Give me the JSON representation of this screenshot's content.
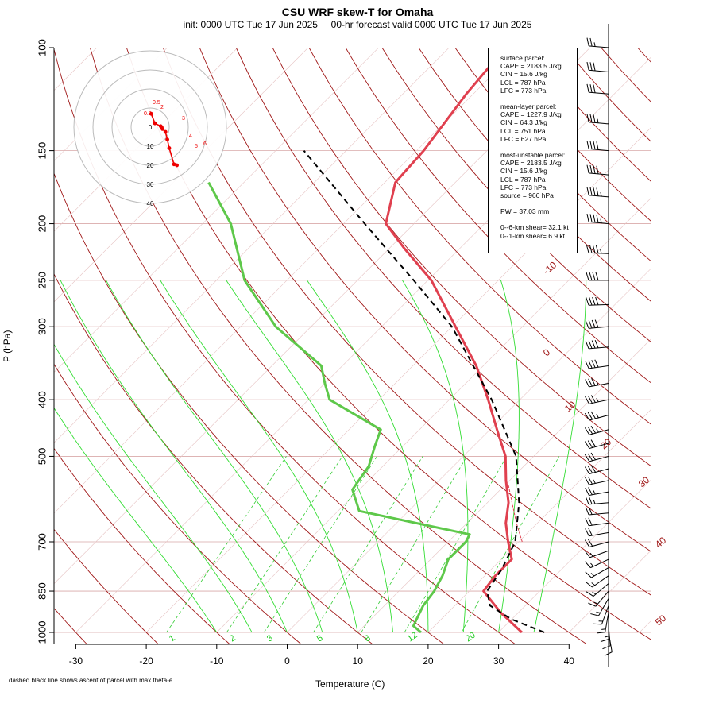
{
  "header": {
    "title": "CSU WRF skew-T for Omaha",
    "subtitle": "init: 0000 UTC Tue 17 Jun 2025     00-hr forecast valid 0000 UTC Tue 17 Jun 2025"
  },
  "footnote": "dashed black line shows ascent of parcel with max theta-e",
  "info": {
    "surface": [
      "surface parcel:",
      "CAPE = 2183.5 J/kg",
      "CIN = 15.6 J/kg",
      "LCL = 787 hPa",
      "LFC = 773 hPa"
    ],
    "mean_layer": [
      "mean-layer parcel:",
      "CAPE = 1227.9 J/kg",
      "CIN = 64.3 J/kg",
      "LCL = 751 hPa",
      "LFC = 627 hPa"
    ],
    "most_unstable": [
      "most-unstable parcel:",
      "CAPE = 2183.5 J/kg",
      "CIN = 15.6 J/kg",
      "LCL = 787 hPa",
      "LFC = 773 hPa",
      "source = 966 hPa"
    ],
    "pw": "PW =  37.03 mm",
    "shear": [
      "0--6-km shear= 32.1 kt",
      "0--1-km shear= 6.9 kt"
    ]
  },
  "chart_data": {
    "type": "line",
    "xlabel": "Temperature (C)",
    "ylabel": "P (hPa)",
    "xlim": [
      -33,
      44
    ],
    "ylim": [
      1000,
      100
    ],
    "log_y": true,
    "skew": true,
    "x_ticks": [
      -30,
      -20,
      -10,
      0,
      10,
      20,
      30,
      40
    ],
    "y_ticks": [
      100,
      150,
      200,
      250,
      300,
      400,
      500,
      700,
      850,
      1000
    ],
    "isotherm_labels": [
      "-10",
      "0",
      "10",
      "20",
      "30",
      "40",
      "50"
    ],
    "mixing_ratio_labels": [
      "1",
      "2",
      "3",
      "5",
      "8",
      "12",
      "20"
    ],
    "colors": {
      "temperature": "#e0404f",
      "dewpoint": "#5ec84a",
      "parcel": "#000000",
      "isotherm": "#a01818",
      "mixing_ratio": "#22cc22",
      "hodograph": "#ee0000"
    },
    "series": [
      {
        "name": "temperature",
        "points": [
          [
            1000,
            33.3
          ],
          [
            925,
            27.5
          ],
          [
            850,
            22
          ],
          [
            800,
            21.5
          ],
          [
            750,
            21.5
          ],
          [
            700,
            18.5
          ],
          [
            650,
            15.5
          ],
          [
            600,
            13
          ],
          [
            550,
            9.5
          ],
          [
            500,
            6
          ],
          [
            450,
            1
          ],
          [
            400,
            -4.5
          ],
          [
            350,
            -11
          ],
          [
            300,
            -19.5
          ],
          [
            250,
            -29.5
          ],
          [
            220,
            -38
          ],
          [
            200,
            -44
          ],
          [
            170,
            -48.5
          ],
          [
            150,
            -49
          ],
          [
            120,
            -51
          ],
          [
            100,
            -52
          ]
        ]
      },
      {
        "name": "dewpoint",
        "points": [
          [
            1000,
            19
          ],
          [
            975,
            17
          ],
          [
            950,
            16.5
          ],
          [
            900,
            15.5
          ],
          [
            850,
            15
          ],
          [
            800,
            14
          ],
          [
            750,
            12.5
          ],
          [
            700,
            12.5
          ],
          [
            680,
            12
          ],
          [
            620,
            -7
          ],
          [
            570,
            -11
          ],
          [
            520,
            -12
          ],
          [
            480,
            -14
          ],
          [
            450,
            -15.5
          ],
          [
            400,
            -27
          ],
          [
            375,
            -30
          ],
          [
            350,
            -33
          ],
          [
            300,
            -45
          ],
          [
            250,
            -56
          ],
          [
            200,
            -66
          ],
          [
            170,
            -75
          ]
        ]
      },
      {
        "name": "parcel",
        "points": [
          [
            1000,
            36.5
          ],
          [
            950,
            30
          ],
          [
            900,
            25
          ],
          [
            850,
            22.5
          ],
          [
            780,
            21.5
          ],
          [
            700,
            19.5
          ],
          [
            600,
            14.5
          ],
          [
            500,
            7.5
          ],
          [
            400,
            -4
          ],
          [
            300,
            -20
          ],
          [
            250,
            -32
          ],
          [
            200,
            -47
          ],
          [
            150,
            -66
          ]
        ]
      },
      {
        "name": "virtual",
        "points": [
          [
            700,
            20.5
          ],
          [
            650,
            17
          ],
          [
            600,
            13.5
          ],
          [
            560,
            10.5
          ]
        ]
      }
    ],
    "hodograph": {
      "ring_labels": [
        "0",
        "10",
        "20",
        "30",
        "40"
      ],
      "point_labels": [
        "0.5",
        "0.0",
        "2",
        "3",
        "4",
        "5",
        "6"
      ],
      "points": [
        [
          0.5,
          0.5
        ],
        [
          2.5,
          5.5
        ],
        [
          5.5,
          7
        ],
        [
          6,
          7.5
        ],
        [
          6.5,
          8.5
        ],
        [
          8,
          10
        ],
        [
          9,
          14
        ],
        [
          10,
          18.5
        ],
        [
          12.5,
          27
        ],
        [
          14,
          27.5
        ]
      ]
    },
    "wind_barbs": [
      {
        "p": 1000,
        "dir": 170,
        "spd": 10
      },
      {
        "p": 975,
        "dir": 175,
        "spd": 10
      },
      {
        "p": 950,
        "dir": 180,
        "spd": 15
      },
      {
        "p": 925,
        "dir": 190,
        "spd": 15
      },
      {
        "p": 900,
        "dir": 200,
        "spd": 15
      },
      {
        "p": 875,
        "dir": 210,
        "spd": 15
      },
      {
        "p": 850,
        "dir": 220,
        "spd": 15
      },
      {
        "p": 825,
        "dir": 230,
        "spd": 15
      },
      {
        "p": 800,
        "dir": 235,
        "spd": 15
      },
      {
        "p": 775,
        "dir": 240,
        "spd": 15
      },
      {
        "p": 750,
        "dir": 245,
        "spd": 15
      },
      {
        "p": 725,
        "dir": 250,
        "spd": 15
      },
      {
        "p": 700,
        "dir": 255,
        "spd": 20
      },
      {
        "p": 675,
        "dir": 260,
        "spd": 20
      },
      {
        "p": 650,
        "dir": 262,
        "spd": 20
      },
      {
        "p": 625,
        "dir": 265,
        "spd": 20
      },
      {
        "p": 600,
        "dir": 265,
        "spd": 25
      },
      {
        "p": 575,
        "dir": 260,
        "spd": 25
      },
      {
        "p": 550,
        "dir": 258,
        "spd": 25
      },
      {
        "p": 525,
        "dir": 255,
        "spd": 30
      },
      {
        "p": 500,
        "dir": 255,
        "spd": 30
      },
      {
        "p": 475,
        "dir": 255,
        "spd": 30
      },
      {
        "p": 450,
        "dir": 255,
        "spd": 35
      },
      {
        "p": 425,
        "dir": 255,
        "spd": 35
      },
      {
        "p": 400,
        "dir": 258,
        "spd": 35
      },
      {
        "p": 375,
        "dir": 260,
        "spd": 35
      },
      {
        "p": 350,
        "dir": 262,
        "spd": 40
      },
      {
        "p": 325,
        "dir": 265,
        "spd": 40
      },
      {
        "p": 300,
        "dir": 265,
        "spd": 40
      },
      {
        "p": 275,
        "dir": 268,
        "spd": 40
      },
      {
        "p": 250,
        "dir": 270,
        "spd": 40
      },
      {
        "p": 225,
        "dir": 272,
        "spd": 45
      },
      {
        "p": 200,
        "dir": 275,
        "spd": 45
      },
      {
        "p": 180,
        "dir": 275,
        "spd": 45
      },
      {
        "p": 165,
        "dir": 275,
        "spd": 40
      },
      {
        "p": 150,
        "dir": 275,
        "spd": 40
      },
      {
        "p": 135,
        "dir": 275,
        "spd": 35
      },
      {
        "p": 120,
        "dir": 275,
        "spd": 30
      },
      {
        "p": 110,
        "dir": 275,
        "spd": 30
      },
      {
        "p": 100,
        "dir": 275,
        "spd": 25
      }
    ]
  }
}
